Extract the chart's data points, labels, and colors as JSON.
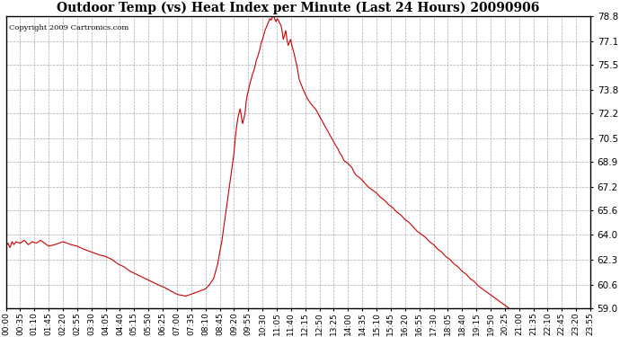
{
  "title": "Outdoor Temp (vs) Heat Index per Minute (Last 24 Hours) 20090906",
  "copyright_text": "Copyright 2009 Cartronics.com",
  "line_color": "#cc0000",
  "background_color": "#ffffff",
  "grid_color": "#aaaaaa",
  "y_min": 59.0,
  "y_max": 78.8,
  "y_ticks": [
    59.0,
    60.6,
    62.3,
    64.0,
    65.6,
    67.2,
    68.9,
    70.5,
    72.2,
    73.8,
    75.5,
    77.1,
    78.8
  ],
  "x_tick_labels": [
    "00:00",
    "00:35",
    "01:10",
    "01:45",
    "02:20",
    "02:55",
    "03:30",
    "04:05",
    "04:40",
    "05:15",
    "05:50",
    "06:25",
    "07:00",
    "07:35",
    "08:10",
    "08:45",
    "09:20",
    "09:55",
    "10:30",
    "11:05",
    "11:40",
    "12:15",
    "12:50",
    "13:25",
    "14:00",
    "14:35",
    "15:10",
    "15:45",
    "16:20",
    "16:55",
    "17:30",
    "18:05",
    "18:40",
    "19:15",
    "19:50",
    "20:25",
    "21:00",
    "21:35",
    "22:10",
    "22:45",
    "23:20",
    "23:55"
  ],
  "data_points": [
    [
      0,
      63.2
    ],
    [
      5,
      63.4
    ],
    [
      10,
      63.1
    ],
    [
      15,
      63.5
    ],
    [
      20,
      63.3
    ],
    [
      25,
      63.5
    ],
    [
      35,
      63.4
    ],
    [
      45,
      63.6
    ],
    [
      55,
      63.3
    ],
    [
      65,
      63.5
    ],
    [
      75,
      63.4
    ],
    [
      85,
      63.6
    ],
    [
      95,
      63.4
    ],
    [
      105,
      63.2
    ],
    [
      120,
      63.3
    ],
    [
      140,
      63.5
    ],
    [
      160,
      63.3
    ],
    [
      175,
      63.2
    ],
    [
      190,
      63.0
    ],
    [
      200,
      62.9
    ],
    [
      210,
      62.8
    ],
    [
      220,
      62.7
    ],
    [
      230,
      62.6
    ],
    [
      245,
      62.5
    ],
    [
      260,
      62.3
    ],
    [
      275,
      62.0
    ],
    [
      290,
      61.8
    ],
    [
      305,
      61.5
    ],
    [
      320,
      61.3
    ],
    [
      335,
      61.1
    ],
    [
      350,
      60.9
    ],
    [
      365,
      60.7
    ],
    [
      380,
      60.5
    ],
    [
      390,
      60.4
    ],
    [
      395,
      60.3
    ],
    [
      400,
      60.25
    ],
    [
      405,
      60.15
    ],
    [
      410,
      60.1
    ],
    [
      415,
      60.0
    ],
    [
      420,
      59.95
    ],
    [
      425,
      59.9
    ],
    [
      430,
      59.88
    ],
    [
      435,
      59.85
    ],
    [
      440,
      59.82
    ],
    [
      445,
      59.85
    ],
    [
      450,
      59.9
    ],
    [
      455,
      59.95
    ],
    [
      460,
      60.0
    ],
    [
      465,
      60.05
    ],
    [
      470,
      60.1
    ],
    [
      475,
      60.15
    ],
    [
      480,
      60.2
    ],
    [
      490,
      60.3
    ],
    [
      500,
      60.6
    ],
    [
      510,
      61.0
    ],
    [
      515,
      61.5
    ],
    [
      520,
      62.0
    ],
    [
      525,
      62.8
    ],
    [
      530,
      63.5
    ],
    [
      535,
      64.5
    ],
    [
      540,
      65.5
    ],
    [
      545,
      66.5
    ],
    [
      550,
      67.5
    ],
    [
      555,
      68.5
    ],
    [
      560,
      69.5
    ],
    [
      563,
      70.5
    ],
    [
      566,
      71.2
    ],
    [
      569,
      71.8
    ],
    [
      572,
      72.2
    ],
    [
      575,
      72.5
    ],
    [
      578,
      72.0
    ],
    [
      581,
      71.5
    ],
    [
      584,
      71.8
    ],
    [
      587,
      72.2
    ],
    [
      590,
      73.0
    ],
    [
      593,
      73.5
    ],
    [
      596,
      73.8
    ],
    [
      599,
      74.2
    ],
    [
      605,
      74.8
    ],
    [
      610,
      75.2
    ],
    [
      615,
      75.8
    ],
    [
      618,
      76.0
    ],
    [
      621,
      76.3
    ],
    [
      624,
      76.6
    ],
    [
      627,
      77.0
    ],
    [
      630,
      77.2
    ],
    [
      633,
      77.5
    ],
    [
      636,
      77.8
    ],
    [
      639,
      78.0
    ],
    [
      642,
      78.2
    ],
    [
      645,
      78.4
    ],
    [
      648,
      78.6
    ],
    [
      651,
      78.5
    ],
    [
      654,
      78.7
    ],
    [
      657,
      78.8
    ],
    [
      660,
      78.6
    ],
    [
      663,
      78.4
    ],
    [
      666,
      78.6
    ],
    [
      669,
      78.5
    ],
    [
      672,
      78.3
    ],
    [
      675,
      78.2
    ],
    [
      678,
      77.8
    ],
    [
      681,
      77.2
    ],
    [
      684,
      77.5
    ],
    [
      687,
      77.8
    ],
    [
      690,
      77.2
    ],
    [
      693,
      76.8
    ],
    [
      696,
      77.0
    ],
    [
      699,
      77.2
    ],
    [
      702,
      76.8
    ],
    [
      705,
      76.5
    ],
    [
      708,
      76.2
    ],
    [
      711,
      75.8
    ],
    [
      714,
      75.5
    ],
    [
      717,
      75.0
    ],
    [
      720,
      74.5
    ],
    [
      730,
      73.8
    ],
    [
      740,
      73.2
    ],
    [
      750,
      72.8
    ],
    [
      760,
      72.5
    ],
    [
      770,
      72.0
    ],
    [
      780,
      71.5
    ],
    [
      790,
      71.0
    ],
    [
      800,
      70.5
    ],
    [
      810,
      70.0
    ],
    [
      815,
      69.8
    ],
    [
      820,
      69.5
    ],
    [
      825,
      69.3
    ],
    [
      830,
      69.0
    ],
    [
      840,
      68.8
    ],
    [
      850,
      68.5
    ],
    [
      855,
      68.2
    ],
    [
      860,
      68.0
    ],
    [
      870,
      67.8
    ],
    [
      880,
      67.5
    ],
    [
      890,
      67.2
    ],
    [
      900,
      67.0
    ],
    [
      910,
      66.8
    ],
    [
      920,
      66.5
    ],
    [
      930,
      66.3
    ],
    [
      940,
      66.0
    ],
    [
      950,
      65.8
    ],
    [
      960,
      65.5
    ],
    [
      970,
      65.3
    ],
    [
      980,
      65.0
    ],
    [
      990,
      64.8
    ],
    [
      1000,
      64.5
    ],
    [
      1010,
      64.2
    ],
    [
      1020,
      64.0
    ],
    [
      1030,
      63.8
    ],
    [
      1040,
      63.5
    ],
    [
      1050,
      63.3
    ],
    [
      1060,
      63.0
    ],
    [
      1070,
      62.8
    ],
    [
      1080,
      62.5
    ],
    [
      1090,
      62.3
    ],
    [
      1100,
      62.0
    ],
    [
      1110,
      61.8
    ],
    [
      1120,
      61.5
    ],
    [
      1130,
      61.3
    ],
    [
      1140,
      61.0
    ],
    [
      1150,
      60.8
    ],
    [
      1160,
      60.5
    ],
    [
      1170,
      60.3
    ],
    [
      1180,
      60.1
    ],
    [
      1190,
      59.9
    ],
    [
      1200,
      59.7
    ],
    [
      1210,
      59.5
    ],
    [
      1220,
      59.3
    ],
    [
      1230,
      59.1
    ],
    [
      1235,
      59.0
    ]
  ]
}
